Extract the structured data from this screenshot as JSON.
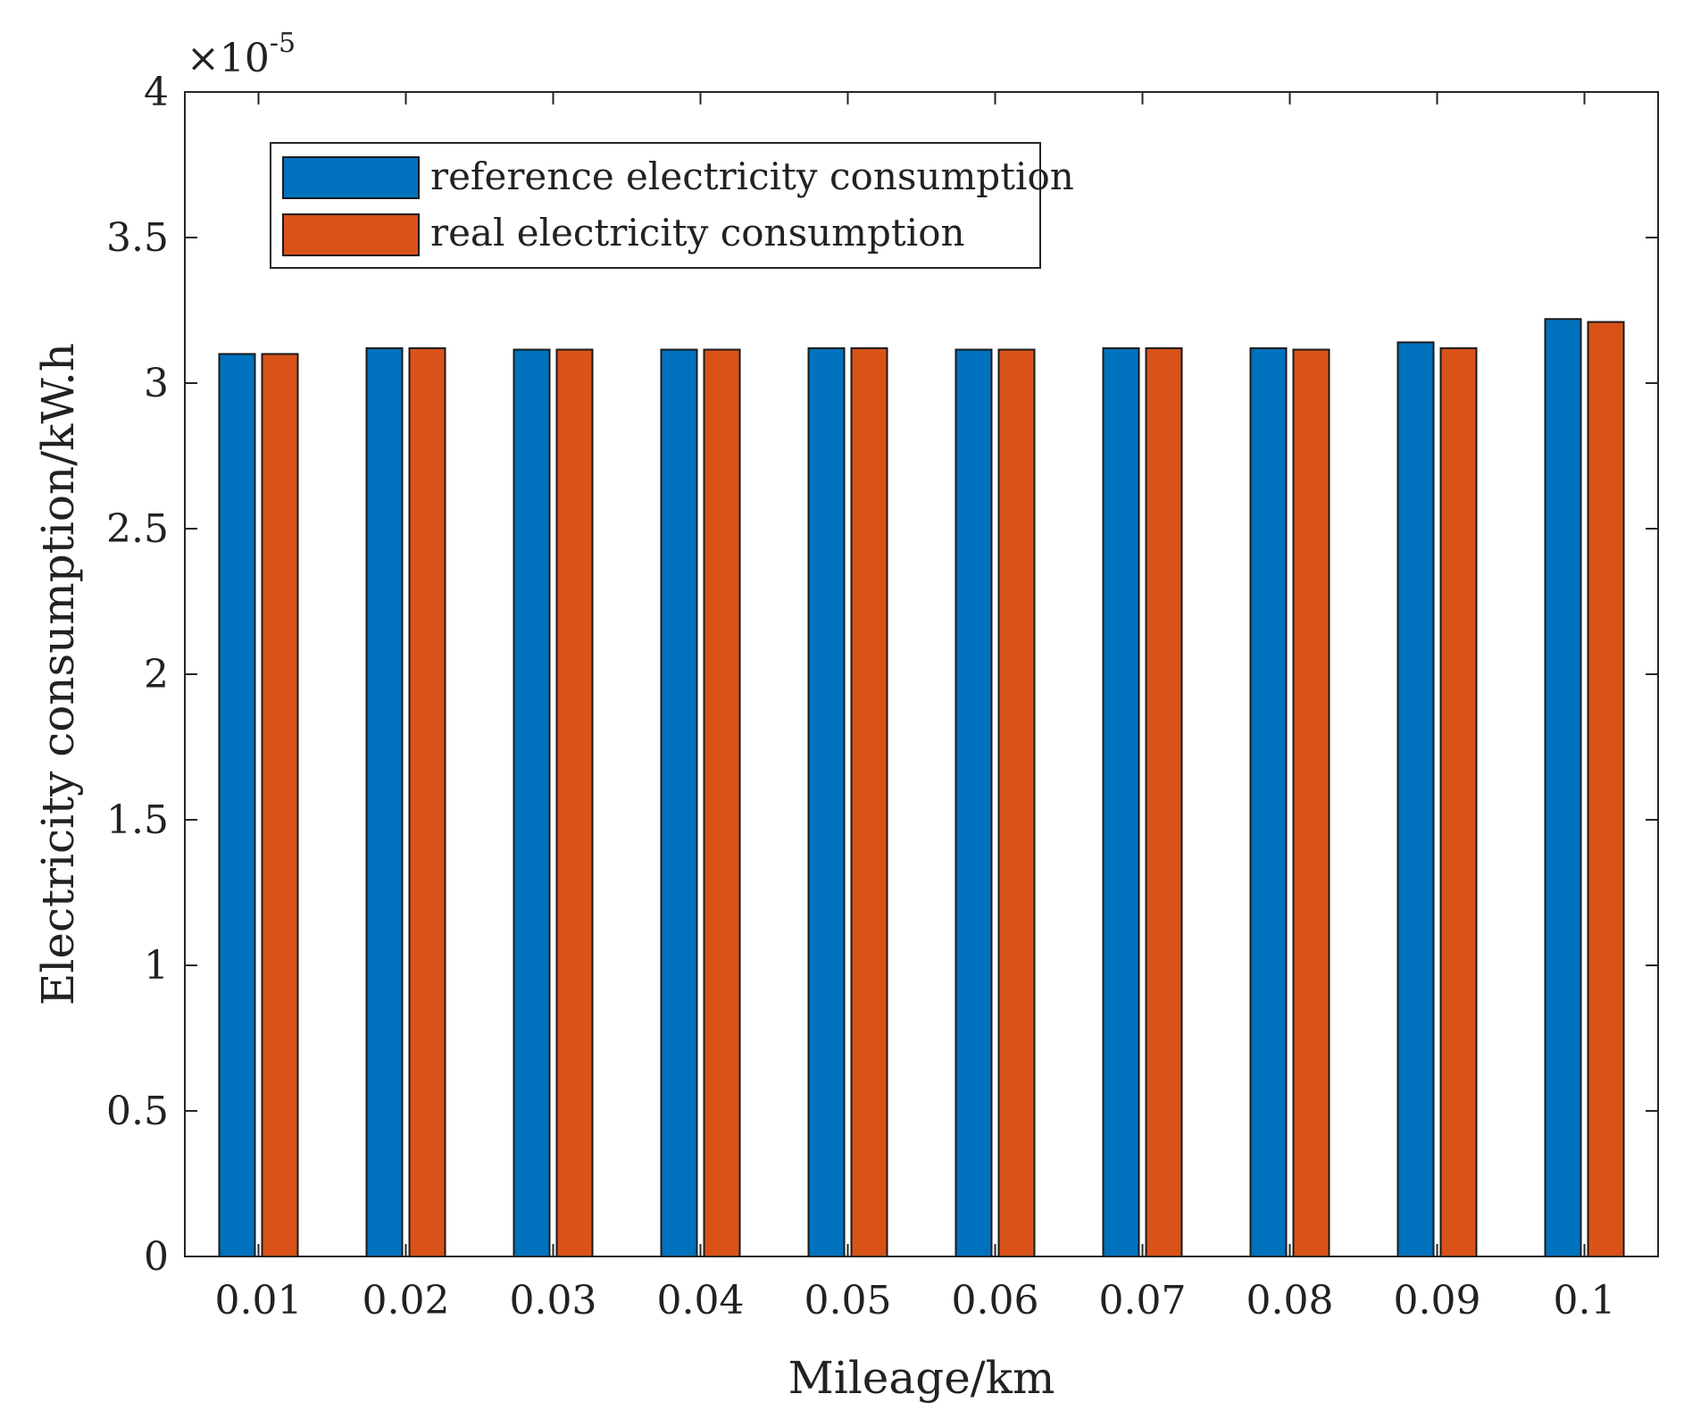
{
  "chart_data": {
    "type": "bar",
    "title": "",
    "xlabel": "Mileage/km",
    "ylabel": "Electricity consumption/kW.h",
    "y_multiplier_base": "×10",
    "y_multiplier_exp": "-5",
    "ylim": [
      0,
      4
    ],
    "y_ticks": [
      0,
      0.5,
      1,
      1.5,
      2,
      2.5,
      3,
      3.5,
      4
    ],
    "y_tick_labels": [
      "0",
      "0.5",
      "1",
      "1.5",
      "2",
      "2.5",
      "3",
      "3.5",
      "4"
    ],
    "categories": [
      "0.01",
      "0.02",
      "0.03",
      "0.04",
      "0.05",
      "0.06",
      "0.07",
      "0.08",
      "0.09",
      "0.1"
    ],
    "series": [
      {
        "name": "reference electricity consumption",
        "color": "#0072BD",
        "values": [
          3.1,
          3.12,
          3.115,
          3.115,
          3.12,
          3.115,
          3.12,
          3.12,
          3.14,
          3.22
        ]
      },
      {
        "name": "real electricity consumption",
        "color": "#D95319",
        "values": [
          3.1,
          3.12,
          3.115,
          3.115,
          3.12,
          3.115,
          3.12,
          3.115,
          3.12,
          3.21
        ]
      }
    ],
    "legend_position": "top-left",
    "grid": false
  }
}
